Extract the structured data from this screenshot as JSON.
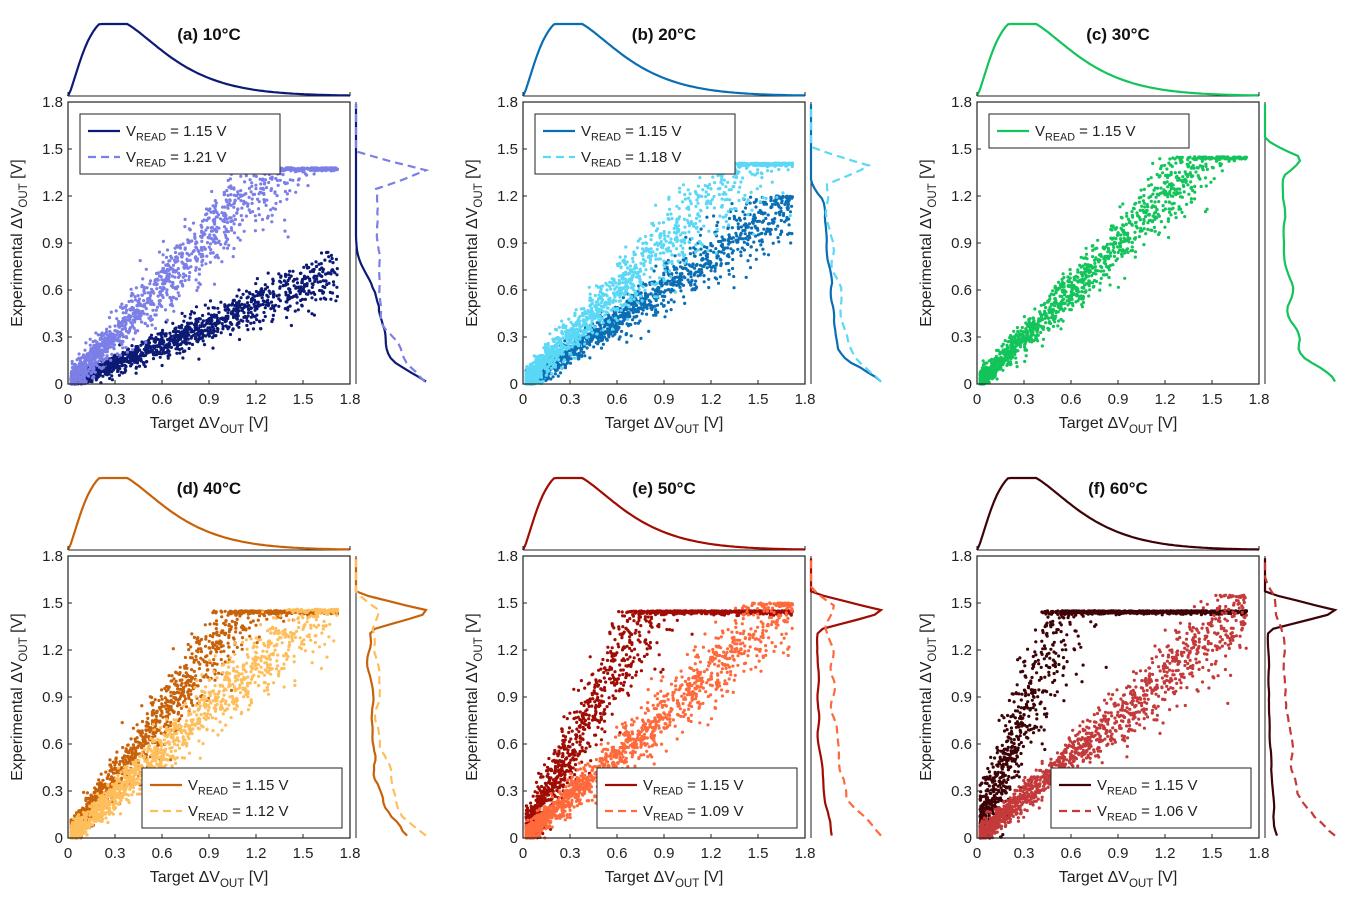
{
  "chart_data": [
    {
      "type": "scatter",
      "title": "(a) 10°C",
      "xlabel_prefix": "Target ΔV",
      "xlabel_sub": "OUT",
      "xlabel_unit": " [V]",
      "ylabel_prefix": "Experimental ΔV",
      "ylabel_sub": "OUT",
      "ylabel_unit": " [V]",
      "xlim": [
        0,
        1.8
      ],
      "ylim": [
        0,
        1.8
      ],
      "xticks": [
        "0",
        "0.3",
        "0.6",
        "0.9",
        "1.2",
        "1.5",
        "1.8"
      ],
      "yticks": [
        "0",
        "0.3",
        "0.6",
        "0.9",
        "1.2",
        "1.5",
        "1.8"
      ],
      "legend_position": "top-left",
      "series": [
        {
          "label_main": "V",
          "label_sub": "READ",
          "label_value": " = 1.15 V",
          "color": "#0d1a75",
          "line": "solid",
          "slope": 0.42,
          "spread": 0.06,
          "sat_y": 0.85,
          "sat_x_end": 1.8,
          "density": 1.0
        },
        {
          "label_main": "V",
          "label_sub": "READ",
          "label_value": " = 1.21 V",
          "color": "#7b7fe6",
          "line": "dashed",
          "slope": 1.05,
          "spread": 0.13,
          "sat_y": 1.38,
          "sat_x_end": 1.8,
          "density": 1.0
        }
      ]
    },
    {
      "type": "scatter",
      "title": "(b) 20°C",
      "xlabel_prefix": "Target ΔV",
      "xlabel_sub": "OUT",
      "xlabel_unit": " [V]",
      "ylabel_prefix": "Experimental ΔV",
      "ylabel_sub": "OUT",
      "ylabel_unit": " [V]",
      "xlim": [
        0,
        1.8
      ],
      "ylim": [
        0,
        1.8
      ],
      "xticks": [
        "0",
        "0.3",
        "0.6",
        "0.9",
        "1.2",
        "1.5",
        "1.8"
      ],
      "yticks": [
        "0",
        "0.3",
        "0.6",
        "0.9",
        "1.2",
        "1.5",
        "1.8"
      ],
      "legend_position": "top-left",
      "series": [
        {
          "label_main": "V",
          "label_sub": "READ",
          "label_value": " = 1.15 V",
          "color": "#0a6eb4",
          "line": "solid",
          "slope": 0.68,
          "spread": 0.08,
          "sat_y": 1.2,
          "sat_x_end": 1.8,
          "density": 1.0
        },
        {
          "label_main": "V",
          "label_sub": "READ",
          "label_value": " = 1.18 V",
          "color": "#5ad8f5",
          "line": "dashed",
          "slope": 1.0,
          "spread": 0.12,
          "sat_y": 1.41,
          "sat_x_end": 1.8,
          "density": 1.0
        }
      ]
    },
    {
      "type": "scatter",
      "title": "(c) 30°C",
      "xlabel_prefix": "Target ΔV",
      "xlabel_sub": "OUT",
      "xlabel_unit": " [V]",
      "ylabel_prefix": "Experimental ΔV",
      "ylabel_sub": "OUT",
      "ylabel_unit": " [V]",
      "xlim": [
        0,
        1.8
      ],
      "ylim": [
        0,
        1.8
      ],
      "xticks": [
        "0",
        "0.3",
        "0.6",
        "0.9",
        "1.2",
        "1.5",
        "1.8"
      ],
      "yticks": [
        "0",
        "0.3",
        "0.6",
        "0.9",
        "1.2",
        "1.5",
        "1.8"
      ],
      "legend_position": "top-left",
      "series": [
        {
          "label_main": "V",
          "label_sub": "READ",
          "label_value": " = 1.15 V",
          "color": "#12c45a",
          "line": "solid",
          "slope": 1.0,
          "spread": 0.1,
          "sat_y": 1.45,
          "sat_x_end": 1.8,
          "density": 1.0
        }
      ]
    },
    {
      "type": "scatter",
      "title": "(d) 40°C",
      "xlabel_prefix": "Target ΔV",
      "xlabel_sub": "OUT",
      "xlabel_unit": " [V]",
      "ylabel_prefix": "Experimental ΔV",
      "ylabel_sub": "OUT",
      "ylabel_unit": " [V]",
      "xlim": [
        0,
        1.8
      ],
      "ylim": [
        0,
        1.8
      ],
      "xticks": [
        "0",
        "0.3",
        "0.6",
        "0.9",
        "1.2",
        "1.5",
        "1.8"
      ],
      "yticks": [
        "0",
        "0.3",
        "0.6",
        "0.9",
        "1.2",
        "1.5",
        "1.8"
      ],
      "legend_position": "bottom-right",
      "series": [
        {
          "label_main": "V",
          "label_sub": "READ",
          "label_value": " = 1.15 V",
          "color": "#c8620a",
          "line": "solid",
          "slope": 1.3,
          "spread": 0.14,
          "sat_y": 1.45,
          "sat_x_end": 1.8,
          "density": 1.0
        },
        {
          "label_main": "V",
          "label_sub": "READ",
          "label_value": " = 1.12 V",
          "color": "#ffbe5c",
          "line": "dashed",
          "slope": 0.92,
          "spread": 0.1,
          "sat_y": 1.46,
          "sat_x_end": 1.8,
          "density": 1.0
        }
      ]
    },
    {
      "type": "scatter",
      "title": "(e) 50°C",
      "xlabel_prefix": "Target ΔV",
      "xlabel_sub": "OUT",
      "xlabel_unit": " [V]",
      "ylabel_prefix": "Experimental ΔV",
      "ylabel_sub": "OUT",
      "ylabel_unit": " [V]",
      "xlim": [
        0,
        1.8
      ],
      "ylim": [
        0,
        1.8
      ],
      "xticks": [
        "0",
        "0.3",
        "0.6",
        "0.9",
        "1.2",
        "1.5",
        "1.8"
      ],
      "yticks": [
        "0",
        "0.3",
        "0.6",
        "0.9",
        "1.2",
        "1.5",
        "1.8"
      ],
      "legend_position": "bottom-right",
      "series": [
        {
          "label_main": "V",
          "label_sub": "READ",
          "label_value": " = 1.15 V",
          "color": "#a00c04",
          "line": "solid",
          "slope": 1.85,
          "spread": 0.22,
          "sat_y": 1.45,
          "sat_x_end": 1.8,
          "density": 1.0
        },
        {
          "label_main": "V",
          "label_sub": "READ",
          "label_value": " = 1.09 V",
          "color": "#ff6a3c",
          "line": "dashed",
          "slope": 0.88,
          "spread": 0.1,
          "sat_y": 1.5,
          "sat_x_end": 1.8,
          "density": 1.0
        }
      ]
    },
    {
      "type": "scatter",
      "title": "(f) 60°C",
      "xlabel_prefix": "Target ΔV",
      "xlabel_sub": "OUT",
      "xlabel_unit": " [V]",
      "ylabel_prefix": "Experimental ΔV",
      "ylabel_sub": "OUT",
      "ylabel_unit": " [V]",
      "xlim": [
        0,
        1.8
      ],
      "ylim": [
        0,
        1.8
      ],
      "xticks": [
        "0",
        "0.3",
        "0.6",
        "0.9",
        "1.2",
        "1.5",
        "1.8"
      ],
      "yticks": [
        "0",
        "0.3",
        "0.6",
        "0.9",
        "1.2",
        "1.5",
        "1.8"
      ],
      "legend_position": "bottom-right",
      "series": [
        {
          "label_main": "V",
          "label_sub": "READ",
          "label_value": " = 1.15 V",
          "color": "#3e0306",
          "line": "solid",
          "slope": 2.6,
          "spread": 0.35,
          "sat_y": 1.45,
          "sat_x_end": 1.8,
          "density": 1.0
        },
        {
          "label_main": "V",
          "label_sub": "READ",
          "label_value": " = 1.06 V",
          "color": "#c43a3a",
          "line": "dashed",
          "slope": 0.86,
          "spread": 0.1,
          "sat_y": 1.55,
          "sat_x_end": 1.8,
          "density": 1.0
        }
      ]
    }
  ]
}
